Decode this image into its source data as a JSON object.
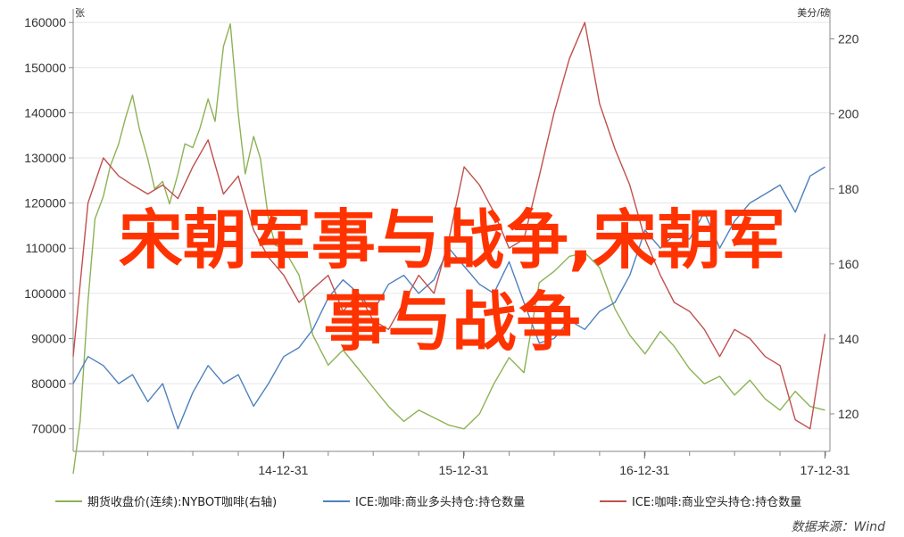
{
  "chart_data": {
    "type": "line",
    "left_axis_unit": "张",
    "right_axis_unit": "美分/磅",
    "left_ylim": [
      65000,
      163000
    ],
    "right_ylim": [
      110,
      228
    ],
    "left_ticks": [
      "70000",
      "80000",
      "90000",
      "100000",
      "110000",
      "120000",
      "130000",
      "140000",
      "150000",
      "160000"
    ],
    "right_ticks": [
      "120",
      "140",
      "160",
      "180",
      "200",
      "220"
    ],
    "x_ticks": [
      "14-12-31",
      "15-12-31",
      "16-12-31",
      "17-12-31"
    ],
    "x_range": [
      "2013-11-01",
      "2018-01-10"
    ],
    "legend_position": "bottom",
    "series": [
      {
        "name": "期货收盘价(连续):NYBOT咖啡(右轴)",
        "axis": "right",
        "color": "#8db255",
        "x": [
          "2013-11-01",
          "2013-11-15",
          "2013-12-01",
          "2013-12-15",
          "2014-01-01",
          "2014-01-15",
          "2014-02-01",
          "2014-02-15",
          "2014-03-01",
          "2014-03-15",
          "2014-04-01",
          "2014-04-15",
          "2014-05-01",
          "2014-05-15",
          "2014-06-01",
          "2014-06-15",
          "2014-07-01",
          "2014-07-15",
          "2014-08-01",
          "2014-08-15",
          "2014-09-01",
          "2014-09-15",
          "2014-10-01",
          "2014-10-15",
          "2014-11-01",
          "2014-11-15",
          "2014-12-01",
          "2014-12-15",
          "2015-01-01",
          "2015-02-01",
          "2015-03-01",
          "2015-04-01",
          "2015-05-01",
          "2015-06-01",
          "2015-07-01",
          "2015-08-01",
          "2015-09-01",
          "2015-10-01",
          "2015-11-01",
          "2015-12-01",
          "2016-01-01",
          "2016-02-01",
          "2016-03-01",
          "2016-04-01",
          "2016-05-01",
          "2016-06-01",
          "2016-07-01",
          "2016-08-01",
          "2016-09-01",
          "2016-10-01",
          "2016-11-01",
          "2016-12-01",
          "2017-01-01",
          "2017-02-01",
          "2017-03-01",
          "2017-04-01",
          "2017-05-01",
          "2017-06-01",
          "2017-07-01",
          "2017-08-01",
          "2017-09-01",
          "2017-10-01",
          "2017-11-01",
          "2017-12-01",
          "2017-12-31"
        ],
        "values": [
          104,
          118,
          150,
          172,
          178,
          186,
          192,
          199,
          205,
          196,
          188,
          180,
          182,
          176,
          184,
          192,
          191,
          196,
          204,
          198,
          218,
          224,
          200,
          184,
          194,
          188,
          172,
          165,
          164,
          157,
          141,
          133,
          137,
          132,
          127,
          122,
          118,
          121,
          119,
          117,
          116,
          120,
          128,
          135,
          131,
          155,
          158,
          162,
          163,
          159,
          148,
          141,
          136,
          142,
          138,
          132,
          128,
          130,
          125,
          129,
          124,
          121,
          126,
          122,
          121
        ]
      },
      {
        "name": "ICE:咖啡:商业多头持仓:持仓数量",
        "axis": "left",
        "color": "#4f81bd",
        "x": [
          "2013-11-01",
          "2013-12-01",
          "2014-01-01",
          "2014-02-01",
          "2014-03-01",
          "2014-04-01",
          "2014-05-01",
          "2014-06-01",
          "2014-07-01",
          "2014-08-01",
          "2014-09-01",
          "2014-10-01",
          "2014-11-01",
          "2014-12-01",
          "2015-01-01",
          "2015-02-01",
          "2015-03-01",
          "2015-04-01",
          "2015-05-01",
          "2015-06-01",
          "2015-07-01",
          "2015-08-01",
          "2015-09-01",
          "2015-10-01",
          "2015-11-01",
          "2015-12-01",
          "2016-01-01",
          "2016-02-01",
          "2016-03-01",
          "2016-04-01",
          "2016-05-01",
          "2016-06-01",
          "2016-07-01",
          "2016-08-01",
          "2016-09-01",
          "2016-10-01",
          "2016-11-01",
          "2016-12-01",
          "2017-01-01",
          "2017-02-01",
          "2017-03-01",
          "2017-04-01",
          "2017-05-01",
          "2017-06-01",
          "2017-07-01",
          "2017-08-01",
          "2017-09-01",
          "2017-10-01",
          "2017-11-01",
          "2017-12-01",
          "2017-12-31"
        ],
        "values": [
          80000,
          86000,
          84000,
          80000,
          82000,
          76000,
          80000,
          70000,
          78000,
          84000,
          80000,
          82000,
          75000,
          80000,
          86000,
          88000,
          92000,
          99000,
          103000,
          100000,
          96000,
          102000,
          104000,
          100000,
          103000,
          110000,
          106000,
          102000,
          100000,
          107000,
          98000,
          89000,
          90000,
          94000,
          92000,
          96000,
          98000,
          104000,
          114000,
          110000,
          113000,
          112000,
          118000,
          110000,
          116000,
          120000,
          122000,
          124000,
          118000,
          126000,
          128000
        ]
      },
      {
        "name": "ICE:咖啡:商业空头持仓:持仓数量",
        "axis": "left",
        "color": "#c0504d",
        "x": [
          "2013-11-01",
          "2013-12-01",
          "2014-01-01",
          "2014-02-01",
          "2014-03-01",
          "2014-04-01",
          "2014-05-01",
          "2014-06-01",
          "2014-07-01",
          "2014-08-01",
          "2014-09-01",
          "2014-10-01",
          "2014-11-01",
          "2014-12-01",
          "2015-01-01",
          "2015-02-01",
          "2015-03-01",
          "2015-04-01",
          "2015-05-01",
          "2015-06-01",
          "2015-07-01",
          "2015-08-01",
          "2015-09-01",
          "2015-10-01",
          "2015-11-01",
          "2015-12-01",
          "2016-01-01",
          "2016-02-01",
          "2016-03-01",
          "2016-04-01",
          "2016-05-01",
          "2016-06-01",
          "2016-07-01",
          "2016-08-01",
          "2016-09-01",
          "2016-10-01",
          "2016-11-01",
          "2016-12-01",
          "2017-01-01",
          "2017-02-01",
          "2017-03-01",
          "2017-04-01",
          "2017-05-01",
          "2017-06-01",
          "2017-07-01",
          "2017-08-01",
          "2017-09-01",
          "2017-10-01",
          "2017-11-01",
          "2017-12-01",
          "2017-12-31"
        ],
        "values": [
          86000,
          120000,
          130000,
          126000,
          124000,
          122000,
          124000,
          121000,
          128000,
          134000,
          122000,
          126000,
          114000,
          108000,
          104000,
          98000,
          101000,
          104000,
          96000,
          100000,
          94000,
          92000,
          98000,
          104000,
          100000,
          112000,
          128000,
          124000,
          118000,
          110000,
          112000,
          126000,
          140000,
          152000,
          160000,
          142000,
          132000,
          124000,
          112000,
          104000,
          98000,
          96000,
          92000,
          86000,
          92000,
          90000,
          86000,
          84000,
          72000,
          70000,
          91000
        ]
      }
    ]
  },
  "overlay_lines": [
    "宋朝军事与战争,宋朝军",
    "事与战争"
  ],
  "source_text": "数据来源：Wind"
}
